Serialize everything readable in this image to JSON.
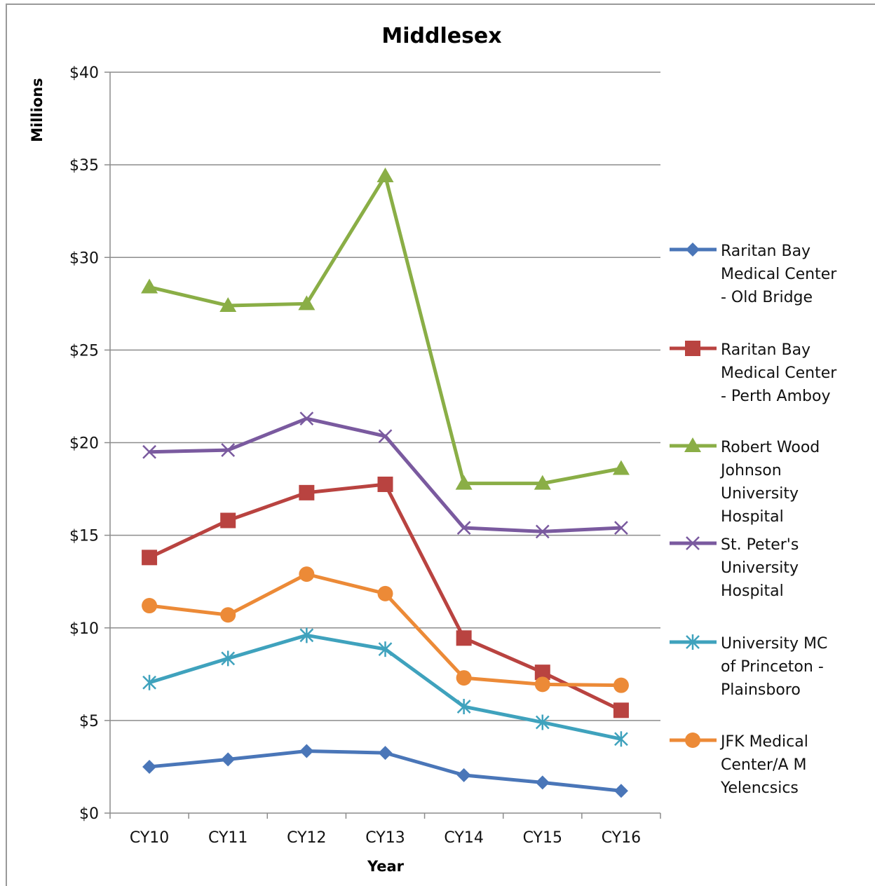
{
  "chart_data": {
    "type": "line",
    "title": "Middlesex",
    "xlabel": "Year",
    "ylabel": "Millions",
    "categories": [
      "CY10",
      "CY11",
      "CY12",
      "CY13",
      "CY14",
      "CY15",
      "CY16"
    ],
    "ylim": [
      0,
      40
    ],
    "yticks": [
      {
        "value": 0,
        "label": "$0"
      },
      {
        "value": 5,
        "label": "$5"
      },
      {
        "value": 10,
        "label": "$10"
      },
      {
        "value": 15,
        "label": "$15"
      },
      {
        "value": 20,
        "label": "$20"
      },
      {
        "value": 25,
        "label": "$25"
      },
      {
        "value": 30,
        "label": "$30"
      },
      {
        "value": 35,
        "label": "$35"
      },
      {
        "value": 40,
        "label": "$40"
      }
    ],
    "grid": true,
    "legend_position": "right",
    "series": [
      {
        "name": "Raritan Bay Medical Center - Old Bridge",
        "legend_lines": [
          "Raritan Bay",
          "Medical Center",
          "- Old Bridge"
        ],
        "color": "#4a76b8",
        "marker": "diamond",
        "values": [
          2.5,
          2.9,
          3.35,
          3.25,
          2.05,
          1.65,
          1.2
        ]
      },
      {
        "name": "Raritan Bay Medical Center - Perth Amboy",
        "legend_lines": [
          "Raritan Bay",
          "Medical Center",
          "- Perth Amboy"
        ],
        "color": "#b94340",
        "marker": "square",
        "values": [
          13.8,
          15.8,
          17.3,
          17.75,
          9.45,
          7.6,
          5.55
        ]
      },
      {
        "name": "Robert Wood Johnson University Hospital",
        "legend_lines": [
          "Robert Wood",
          "Johnson",
          "University",
          "Hospital"
        ],
        "color": "#8aae46",
        "marker": "triangle",
        "values": [
          28.4,
          27.4,
          27.5,
          34.4,
          17.8,
          17.8,
          18.6
        ]
      },
      {
        "name": "St. Peter's University Hospital",
        "legend_lines": [
          "St. Peter's",
          "University",
          "Hospital"
        ],
        "color": "#7a5a9f",
        "marker": "x",
        "values": [
          19.5,
          19.6,
          21.3,
          20.35,
          15.4,
          15.2,
          15.4
        ]
      },
      {
        "name": "University MC of Princeton - Plainsboro",
        "legend_lines": [
          "University MC",
          "of Princeton -",
          "Plainsboro"
        ],
        "color": "#3fa2bd",
        "marker": "star",
        "values": [
          7.05,
          8.35,
          9.6,
          8.85,
          5.75,
          4.9,
          4.0
        ]
      },
      {
        "name": "JFK Medical Center/A M Yelencsics",
        "legend_lines": [
          "JFK Medical",
          "Center/A M",
          "Yelencsics"
        ],
        "color": "#ec8a37",
        "marker": "circle",
        "values": [
          11.2,
          10.7,
          12.9,
          11.85,
          7.3,
          6.95,
          6.9
        ]
      }
    ]
  }
}
